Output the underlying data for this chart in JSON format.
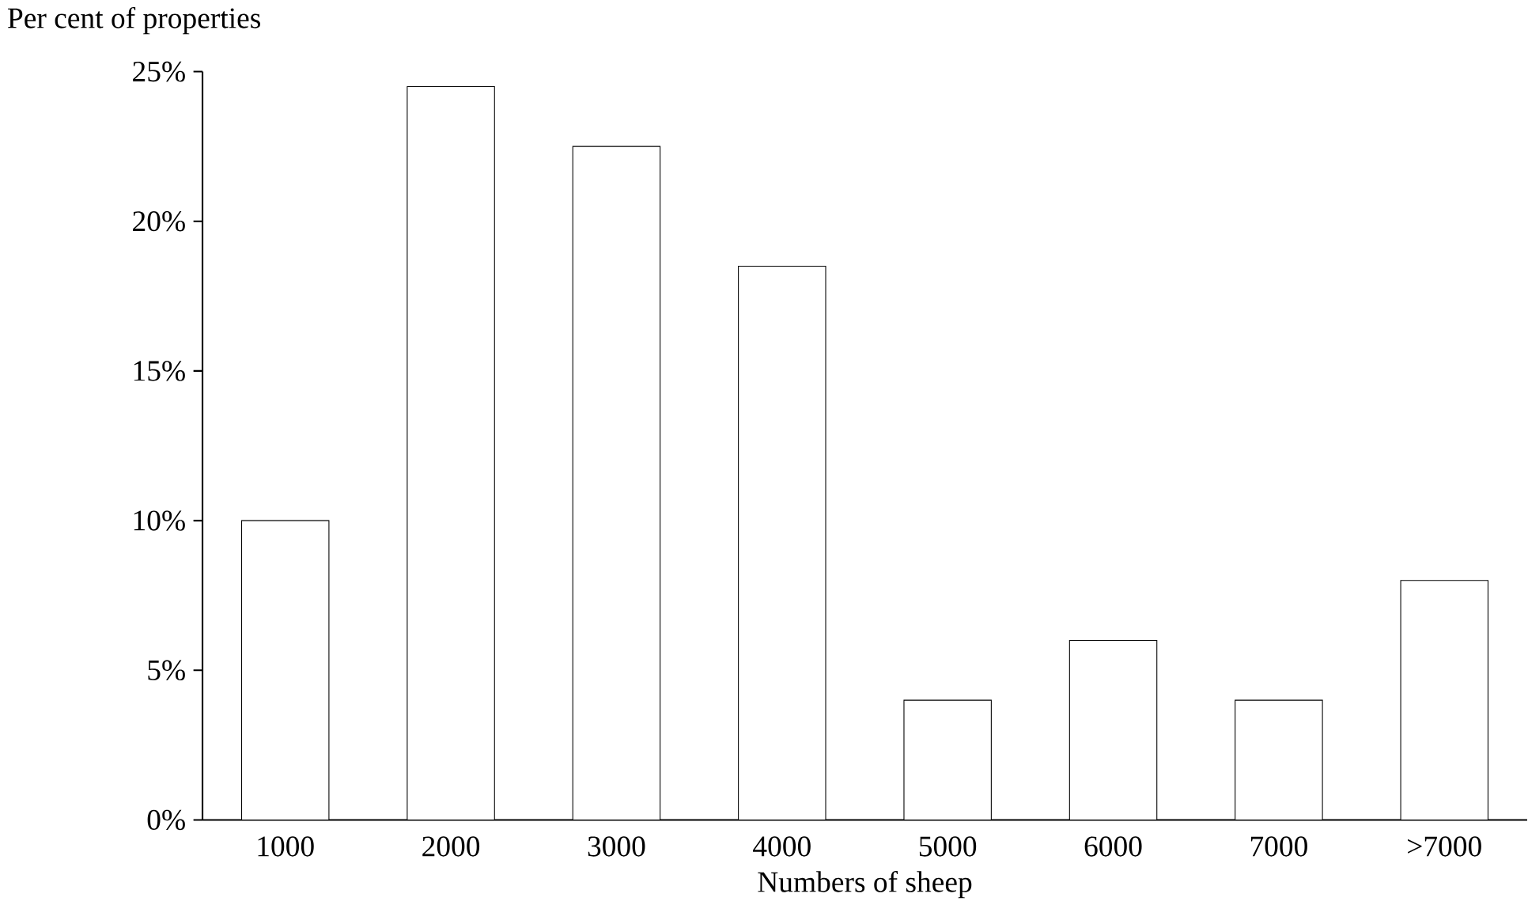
{
  "chart_data": {
    "type": "bar",
    "xlabel": "Numbers of sheep",
    "ylabel": "Per cent of properties",
    "categories": [
      "1000",
      "2000",
      "3000",
      "4000",
      "5000",
      "6000",
      "7000",
      ">7000"
    ],
    "values": [
      10,
      24.5,
      22.5,
      18.5,
      4,
      6,
      4,
      8
    ],
    "color": "#ffffff",
    "ylim": [
      0,
      25
    ],
    "yticks": [
      {
        "value": 0,
        "label": "0%"
      },
      {
        "value": 5,
        "label": "5%"
      },
      {
        "value": 10,
        "label": "10%"
      },
      {
        "value": 15,
        "label": "15%"
      },
      {
        "value": 20,
        "label": "20%"
      },
      {
        "value": 25,
        "label": "25%"
      }
    ],
    "grid": false
  }
}
